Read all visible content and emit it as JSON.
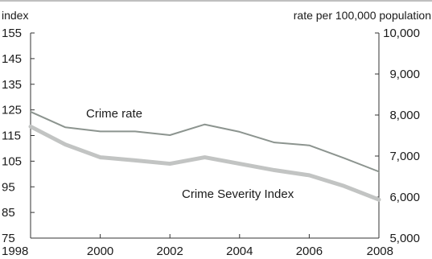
{
  "chart_data": {
    "type": "line",
    "left_axis": {
      "unit": "index",
      "ylim": [
        75,
        155
      ],
      "ticks": [
        75,
        85,
        95,
        105,
        115,
        125,
        135,
        145,
        155
      ],
      "tick_labels": [
        "75",
        "85",
        "95",
        "105",
        "115",
        "125",
        "135",
        "145",
        "155"
      ]
    },
    "right_axis": {
      "unit": "rate per 100,000 population",
      "ylim": [
        5000,
        10000
      ],
      "ticks": [
        5000,
        6000,
        7000,
        8000,
        9000,
        10000
      ],
      "tick_labels": [
        "5,000",
        "6,000",
        "7,000",
        "8,000",
        "9,000",
        "10,000"
      ]
    },
    "x_axis": {
      "xlim": [
        1998,
        2008
      ],
      "ticks": [
        1998,
        2000,
        2002,
        2004,
        2006,
        2008
      ],
      "tick_labels": [
        "1998",
        "2000",
        "2002",
        "2004",
        "2006",
        "2008"
      ]
    },
    "x": [
      1998,
      1999,
      2000,
      2001,
      2002,
      2003,
      2004,
      2005,
      2006,
      2007,
      2008
    ],
    "series": [
      {
        "name": "Crime rate",
        "axis": "right",
        "color": "#8c948f",
        "values": [
          8080,
          7700,
          7600,
          7600,
          7510,
          7770,
          7590,
          7330,
          7260,
          6950,
          6620
        ]
      },
      {
        "name": "Crime Severity Index",
        "axis": "left",
        "color": "#c2c4c3",
        "values": [
          118.5,
          111.5,
          106.5,
          105.3,
          104,
          106.5,
          104,
          101.5,
          99.5,
          95.3,
          90
        ]
      }
    ],
    "grid": false,
    "legend": "inline labels"
  }
}
